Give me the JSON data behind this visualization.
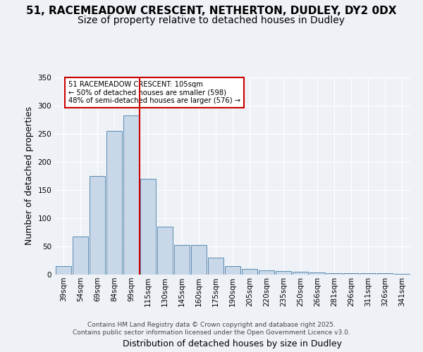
{
  "title_line1": "51, RACEMEADOW CRESCENT, NETHERTON, DUDLEY, DY2 0DX",
  "title_line2": "Size of property relative to detached houses in Dudley",
  "xlabel": "Distribution of detached houses by size in Dudley",
  "ylabel": "Number of detached properties",
  "bar_values": [
    15,
    68,
    175,
    255,
    283,
    170,
    85,
    52,
    52,
    30,
    15,
    10,
    8,
    6,
    5,
    4,
    3,
    3,
    2,
    2,
    1
  ],
  "categories": [
    "39sqm",
    "54sqm",
    "69sqm",
    "84sqm",
    "99sqm",
    "115sqm",
    "130sqm",
    "145sqm",
    "160sqm",
    "175sqm",
    "190sqm",
    "205sqm",
    "220sqm",
    "235sqm",
    "250sqm",
    "266sqm",
    "281sqm",
    "296sqm",
    "311sqm",
    "326sqm",
    "341sqm"
  ],
  "bar_color": "#c8d8e8",
  "bar_edge_color": "#5a8ab0",
  "property_line_x": 4.5,
  "annotation_text": "51 RACEMEADOW CRESCENT: 105sqm\n← 50% of detached houses are smaller (598)\n48% of semi-detached houses are larger (576) →",
  "annotation_box_color": "#ffffff",
  "annotation_box_edge": "#cc0000",
  "vline_color": "#cc0000",
  "ylim": [
    0,
    350
  ],
  "yticks": [
    0,
    50,
    100,
    150,
    200,
    250,
    300,
    350
  ],
  "footer_text": "Contains HM Land Registry data © Crown copyright and database right 2025.\nContains public sector information licensed under the Open Government Licence v3.0.",
  "bg_color": "#eef2f7",
  "plot_bg_color": "#eef2f7",
  "title_fontsize": 11,
  "subtitle_fontsize": 10,
  "tick_fontsize": 7.5,
  "ylabel_fontsize": 9,
  "xlabel_fontsize": 9
}
